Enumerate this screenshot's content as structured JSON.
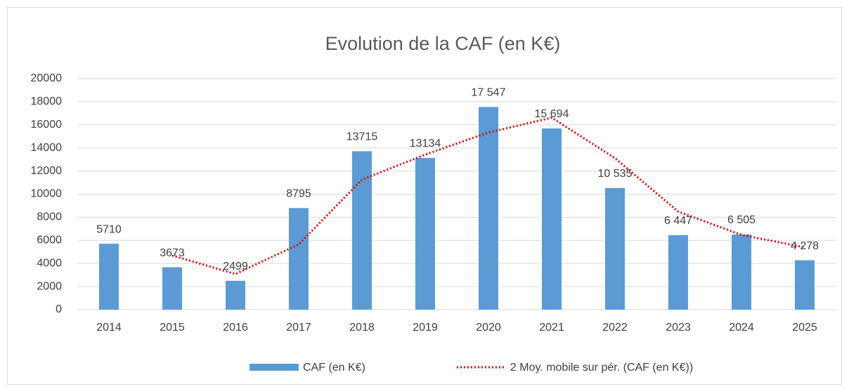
{
  "chart_data": {
    "type": "bar",
    "title": "Evolution de la CAF (en K€)",
    "categories": [
      "2014",
      "2015",
      "2016",
      "2017",
      "2018",
      "2019",
      "2020",
      "2021",
      "2022",
      "2023",
      "2024",
      "2025"
    ],
    "series": [
      {
        "name": "CAF (en K€)",
        "color": "#5b9bd5",
        "type": "bar",
        "values": [
          5710,
          3673,
          2499,
          8795,
          13715,
          13134,
          17547,
          15694,
          10535,
          6447,
          6505,
          4278
        ],
        "value_labels": [
          "5710",
          "3673",
          "2499",
          "8795",
          "13715",
          "13134",
          "17 547",
          "15 694",
          "10 535",
          "6 447",
          "6 505",
          "4 278"
        ]
      },
      {
        "name": "2 Moy. mobile sur pér. (CAF (en K€))",
        "color": "#e00000",
        "type": "line",
        "values": [
          null,
          4691.5,
          3086,
          5647,
          11255,
          13424.5,
          15340.5,
          16620.5,
          13114.5,
          8491,
          6476,
          5391.5
        ]
      }
    ],
    "ylim": [
      0,
      20000
    ],
    "yticks": [
      0,
      2000,
      4000,
      6000,
      8000,
      10000,
      12000,
      14000,
      16000,
      18000,
      20000
    ],
    "grid": true,
    "legend": "bottom"
  }
}
